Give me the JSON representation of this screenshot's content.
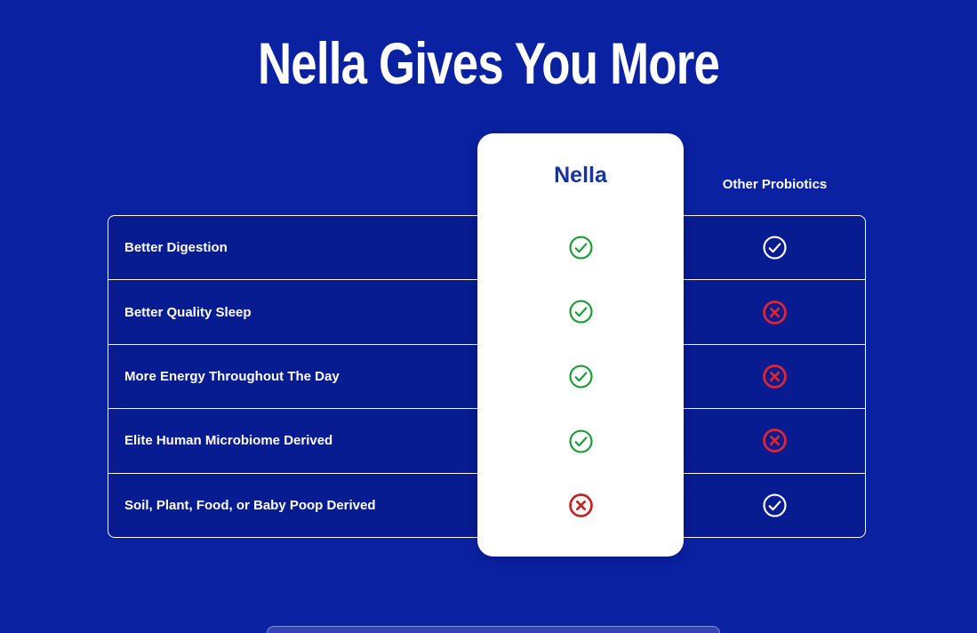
{
  "page": {
    "title": "Nella Gives You More"
  },
  "table": {
    "nella_header": "Nella",
    "other_header": "Other Probiotics",
    "rows": [
      {
        "label": "Better Digestion",
        "nella": "check",
        "other": "check"
      },
      {
        "label": "Better Quality Sleep",
        "nella": "check",
        "other": "cross"
      },
      {
        "label": "More Energy Throughout The Day",
        "nella": "check",
        "other": "cross"
      },
      {
        "label": "Elite Human Microbiome Derived",
        "nella": "check",
        "other": "cross"
      },
      {
        "label": "Soil, Plant, Food, or Baby Poop Derived",
        "nella": "cross",
        "other": "check"
      }
    ]
  },
  "icons": {
    "check": "check-circle-icon",
    "cross": "cross-circle-icon"
  },
  "colors": {
    "background": "#0a21a2",
    "check_green": "#1d9b38",
    "cross_red_on_white": "#c32525",
    "cross_red_on_blue": "#e2262f",
    "icon_white": "#ffffff",
    "nella_header_blue": "#16339e"
  }
}
